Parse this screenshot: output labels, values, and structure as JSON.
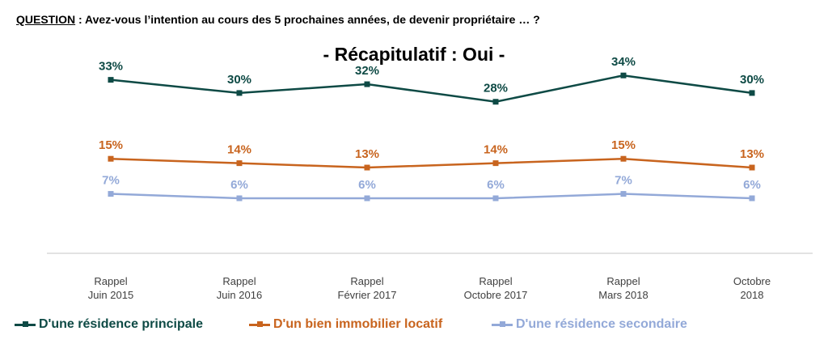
{
  "question": {
    "label": "QUESTION",
    "separator": " :  ",
    "text": "Avez-vous l’intention au cours des 5 prochaines années, de devenir propriétaire … ?"
  },
  "chart_data": {
    "type": "line",
    "title": "- Récapitulatif : Oui -",
    "categories": [
      [
        "Rappel",
        "Juin 2015"
      ],
      [
        "Rappel",
        "Juin 2016"
      ],
      [
        "Rappel",
        "Février 2017"
      ],
      [
        "Rappel",
        "Octobre 2017"
      ],
      [
        "Rappel",
        "Mars 2018"
      ],
      [
        "Octobre",
        "2018"
      ]
    ],
    "unit": "%",
    "grid": false,
    "legend_position": "bottom",
    "series": [
      {
        "name": "D'une résidence principale",
        "color": "#0e4a45",
        "values": [
          33,
          30,
          32,
          28,
          34,
          30
        ]
      },
      {
        "name": "D'un bien immobilier locatif",
        "color": "#c8641e",
        "values": [
          15,
          14,
          13,
          14,
          15,
          13
        ]
      },
      {
        "name": "D'une résidence secondaire",
        "color": "#93a9d8",
        "values": [
          7,
          6,
          6,
          6,
          7,
          6
        ]
      }
    ]
  }
}
